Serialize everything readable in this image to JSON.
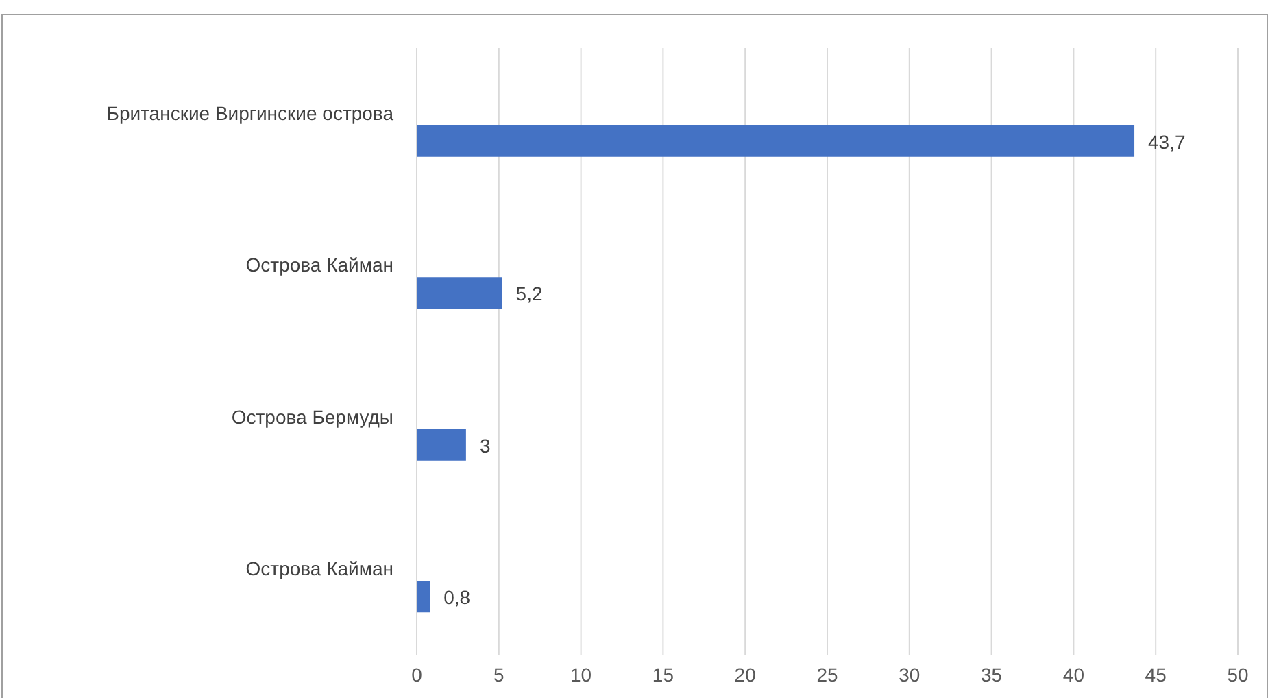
{
  "chart_data": {
    "type": "bar",
    "orientation": "horizontal",
    "categories": [
      "Британские Виргинские острова",
      "Острова Кайман",
      "Острова Бермуды",
      "Острова Кайман"
    ],
    "values": [
      43.7,
      5.2,
      3,
      0.8
    ],
    "color": "#4472c4",
    "value_labels": [
      "43,7",
      "5,2",
      "3",
      "0,8"
    ],
    "xlim": [
      0,
      50
    ],
    "xticks": [
      0,
      5,
      10,
      15,
      20,
      25,
      30,
      35,
      40,
      45,
      50
    ],
    "grid": "x"
  }
}
